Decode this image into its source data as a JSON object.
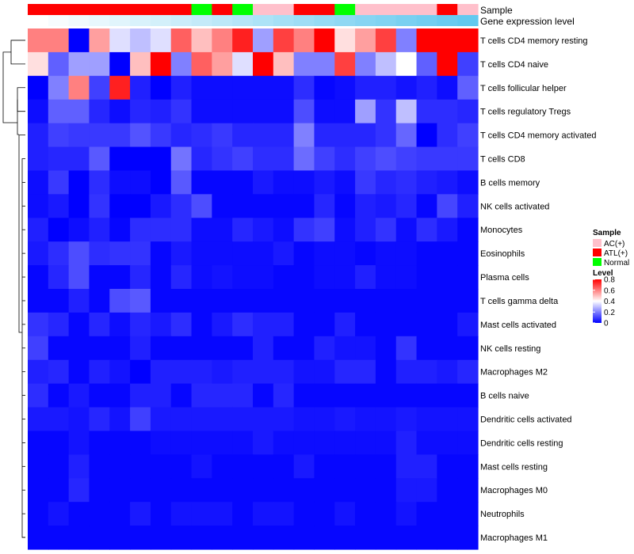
{
  "chart_data": {
    "type": "heatmap",
    "title": "",
    "annotation_labels": {
      "sample": "Sample",
      "gene_expression": "Gene expression level"
    },
    "row_labels": [
      "T cells CD4 memory resting",
      "T cells CD4 naive",
      "T cells follicular helper",
      "T cells regulatory  Tregs",
      "T cells CD4 memory activated",
      "T cells CD8",
      "B cells memory",
      "NK cells activated",
      "Monocytes",
      "Eosinophils",
      "Plasma cells",
      "T cells gamma delta",
      "Mast cells activated",
      "NK cells resting",
      "Macrophages M2",
      "B cells naive",
      "Dendritic cells activated",
      "Dendritic cells resting",
      "Mast cells resting",
      "Macrophages M0",
      "Neutrophils",
      "Macrophages M1"
    ],
    "column_samples": [
      "ATL(+)",
      "ATL(+)",
      "ATL(+)",
      "ATL(+)",
      "ATL(+)",
      "ATL(+)",
      "ATL(+)",
      "ATL(+)",
      "Normal",
      "ATL(+)",
      "Normal",
      "AC(+)",
      "AC(+)",
      "ATL(+)",
      "ATL(+)",
      "Normal",
      "AC(+)",
      "AC(+)",
      "AC(+)",
      "AC(+)",
      "ATL(+)",
      "AC(+)"
    ],
    "gene_expression_level": [
      0.0,
      0.05,
      0.09,
      0.14,
      0.18,
      0.23,
      0.27,
      0.32,
      0.36,
      0.41,
      0.45,
      0.5,
      0.55,
      0.59,
      0.64,
      0.68,
      0.73,
      0.77,
      0.82,
      0.86,
      0.91,
      0.95
    ],
    "values": [
      [
        0.6,
        0.6,
        0.0,
        0.55,
        0.35,
        0.3,
        0.35,
        0.65,
        0.5,
        0.6,
        0.75,
        0.25,
        0.7,
        0.6,
        0.8,
        0.45,
        0.55,
        0.7,
        0.2,
        0.8,
        0.8,
        0.8
      ],
      [
        0.45,
        0.15,
        0.25,
        0.25,
        0.0,
        0.5,
        0.8,
        0.2,
        0.65,
        0.55,
        0.35,
        0.8,
        0.5,
        0.2,
        0.2,
        0.7,
        0.2,
        0.3,
        0.4,
        0.15,
        0.8,
        0.1
      ],
      [
        0.0,
        0.2,
        0.6,
        0.1,
        0.75,
        0.05,
        0.0,
        0.05,
        0.02,
        0.02,
        0.02,
        0.02,
        0.02,
        0.07,
        0.01,
        0.02,
        0.05,
        0.05,
        0.03,
        0.05,
        0.02,
        0.15
      ],
      [
        0.02,
        0.15,
        0.15,
        0.06,
        0.02,
        0.06,
        0.05,
        0.08,
        0.02,
        0.02,
        0.02,
        0.02,
        0.02,
        0.12,
        0.02,
        0.02,
        0.25,
        0.08,
        0.3,
        0.07,
        0.07,
        0.06
      ],
      [
        0.05,
        0.1,
        0.09,
        0.09,
        0.09,
        0.13,
        0.09,
        0.06,
        0.07,
        0.09,
        0.06,
        0.06,
        0.06,
        0.2,
        0.06,
        0.06,
        0.06,
        0.08,
        0.16,
        0.0,
        0.07,
        0.1
      ],
      [
        0.05,
        0.06,
        0.06,
        0.14,
        0.0,
        0.0,
        0.0,
        0.18,
        0.06,
        0.08,
        0.1,
        0.07,
        0.07,
        0.17,
        0.1,
        0.07,
        0.1,
        0.12,
        0.1,
        0.09,
        0.09,
        0.09
      ],
      [
        0.02,
        0.09,
        0.0,
        0.07,
        0.02,
        0.02,
        0.0,
        0.14,
        0.01,
        0.01,
        0.01,
        0.04,
        0.02,
        0.02,
        0.04,
        0.02,
        0.09,
        0.06,
        0.07,
        0.05,
        0.04,
        0.02
      ],
      [
        0.02,
        0.04,
        0.0,
        0.08,
        0.0,
        0.0,
        0.04,
        0.07,
        0.12,
        0.01,
        0.01,
        0.01,
        0.01,
        0.01,
        0.06,
        0.01,
        0.05,
        0.04,
        0.06,
        0.01,
        0.11,
        0.05
      ],
      [
        0.05,
        0.0,
        0.02,
        0.05,
        0.01,
        0.07,
        0.07,
        0.07,
        0.02,
        0.02,
        0.06,
        0.04,
        0.02,
        0.08,
        0.1,
        0.02,
        0.05,
        0.08,
        0.02,
        0.07,
        0.04,
        0.01
      ],
      [
        0.04,
        0.07,
        0.12,
        0.07,
        0.08,
        0.08,
        0.01,
        0.04,
        0.02,
        0.02,
        0.02,
        0.02,
        0.04,
        0.01,
        0.02,
        0.02,
        0.01,
        0.02,
        0.02,
        0.01,
        0.01,
        0.01
      ],
      [
        0.01,
        0.06,
        0.12,
        0.01,
        0.01,
        0.06,
        0.01,
        0.06,
        0.02,
        0.03,
        0.02,
        0.02,
        0.01,
        0.01,
        0.02,
        0.02,
        0.05,
        0.02,
        0.02,
        0.01,
        0.01,
        0.01
      ],
      [
        0.01,
        0.01,
        0.05,
        0.01,
        0.12,
        0.14,
        0.01,
        0.01,
        0.01,
        0.01,
        0.01,
        0.01,
        0.01,
        0.01,
        0.01,
        0.01,
        0.01,
        0.01,
        0.01,
        0.01,
        0.01,
        0.01
      ],
      [
        0.08,
        0.06,
        0.01,
        0.06,
        0.02,
        0.06,
        0.04,
        0.07,
        0.01,
        0.04,
        0.07,
        0.05,
        0.05,
        0.01,
        0.01,
        0.05,
        0.01,
        0.01,
        0.01,
        0.01,
        0.01,
        0.04
      ],
      [
        0.1,
        0.01,
        0.01,
        0.01,
        0.01,
        0.05,
        0.01,
        0.01,
        0.01,
        0.01,
        0.01,
        0.05,
        0.01,
        0.01,
        0.05,
        0.03,
        0.03,
        0.01,
        0.08,
        0.01,
        0.01,
        0.01
      ],
      [
        0.05,
        0.06,
        0.01,
        0.05,
        0.03,
        0.0,
        0.05,
        0.05,
        0.05,
        0.04,
        0.05,
        0.05,
        0.05,
        0.03,
        0.03,
        0.06,
        0.06,
        0.01,
        0.05,
        0.05,
        0.04,
        0.06
      ],
      [
        0.07,
        0.01,
        0.04,
        0.01,
        0.01,
        0.05,
        0.05,
        0.01,
        0.06,
        0.06,
        0.06,
        0.01,
        0.06,
        0.01,
        0.01,
        0.01,
        0.01,
        0.01,
        0.01,
        0.01,
        0.01,
        0.01
      ],
      [
        0.04,
        0.04,
        0.03,
        0.06,
        0.03,
        0.1,
        0.04,
        0.04,
        0.04,
        0.04,
        0.04,
        0.04,
        0.04,
        0.03,
        0.03,
        0.04,
        0.03,
        0.03,
        0.04,
        0.03,
        0.03,
        0.03
      ],
      [
        0.01,
        0.01,
        0.03,
        0.01,
        0.01,
        0.01,
        0.02,
        0.02,
        0.02,
        0.02,
        0.02,
        0.04,
        0.02,
        0.02,
        0.02,
        0.02,
        0.02,
        0.02,
        0.05,
        0.02,
        0.02,
        0.02
      ],
      [
        0.01,
        0.01,
        0.05,
        0.01,
        0.01,
        0.01,
        0.01,
        0.01,
        0.03,
        0.01,
        0.01,
        0.01,
        0.01,
        0.04,
        0.01,
        0.01,
        0.01,
        0.01,
        0.05,
        0.05,
        0.01,
        0.01
      ],
      [
        0.01,
        0.01,
        0.06,
        0.01,
        0.01,
        0.01,
        0.01,
        0.01,
        0.01,
        0.01,
        0.01,
        0.01,
        0.01,
        0.01,
        0.01,
        0.01,
        0.01,
        0.01,
        0.04,
        0.04,
        0.01,
        0.01
      ],
      [
        0.01,
        0.03,
        0.01,
        0.01,
        0.01,
        0.04,
        0.01,
        0.03,
        0.03,
        0.03,
        0.01,
        0.03,
        0.03,
        0.01,
        0.01,
        0.03,
        0.01,
        0.01,
        0.03,
        0.01,
        0.01,
        0.01
      ],
      [
        0.01,
        0.01,
        0.01,
        0.01,
        0.01,
        0.01,
        0.01,
        0.01,
        0.01,
        0.01,
        0.01,
        0.01,
        0.01,
        0.01,
        0.01,
        0.01,
        0.01,
        0.01,
        0.01,
        0.01,
        0.01,
        0.01
      ]
    ],
    "legend": {
      "sample_title": "Sample",
      "sample_items": [
        {
          "label": "AC(+)",
          "color": "#FFC0CB"
        },
        {
          "label": "ATL(+)",
          "color": "#FF0000"
        },
        {
          "label": "Normal",
          "color": "#00FF00"
        }
      ],
      "level_title": "Level",
      "level_ticks": [
        "0.8",
        "0.6",
        "0.4",
        "0.2",
        "0"
      ],
      "level_range": [
        0,
        0.8
      ]
    },
    "color_scale": {
      "low": "#0000FF",
      "mid": "#FFFFFF",
      "high": "#FF0000",
      "midpoint": 0.4
    },
    "gene_expression_colors": {
      "low": "#FFFFFF",
      "high": "#5BC6EE"
    }
  }
}
